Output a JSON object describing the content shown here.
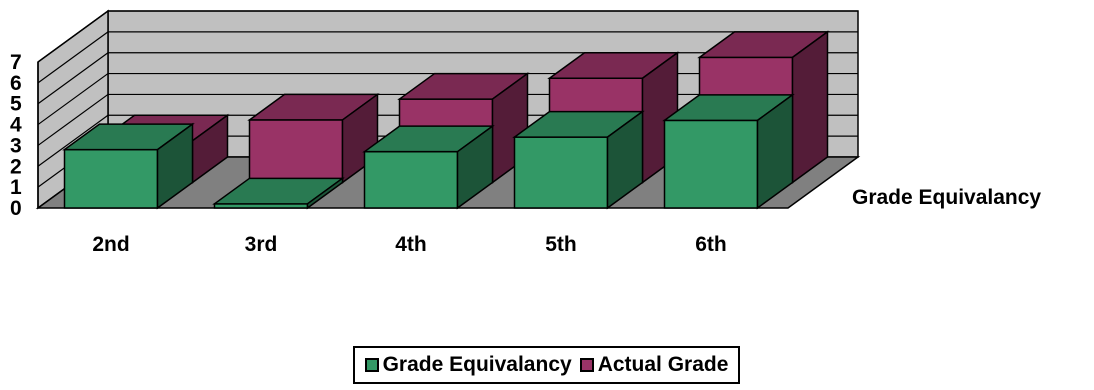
{
  "chart_data": {
    "type": "bar",
    "title": "",
    "xlabel": "",
    "ylabel": "",
    "categories": [
      "2nd",
      "3rd",
      "4th",
      "5th",
      "6th"
    ],
    "series_axis_label": "Grade Equivalancy",
    "series": [
      {
        "name": "Grade Equivalancy",
        "values": [
          2.8,
          0.2,
          2.7,
          3.4,
          4.2
        ],
        "color": "#339966"
      },
      {
        "name": "Actual Grade",
        "values": [
          2,
          3,
          4,
          5,
          6
        ],
        "color": "#993366"
      }
    ],
    "yticks": [
      "0",
      "1",
      "2",
      "3",
      "4",
      "5",
      "6",
      "7"
    ],
    "ylim": [
      0,
      7
    ],
    "grid": true,
    "legend_position": "bottom",
    "colors": {
      "wall": "#c0c0c0",
      "floor": "#808080",
      "grid": "#000000"
    }
  }
}
